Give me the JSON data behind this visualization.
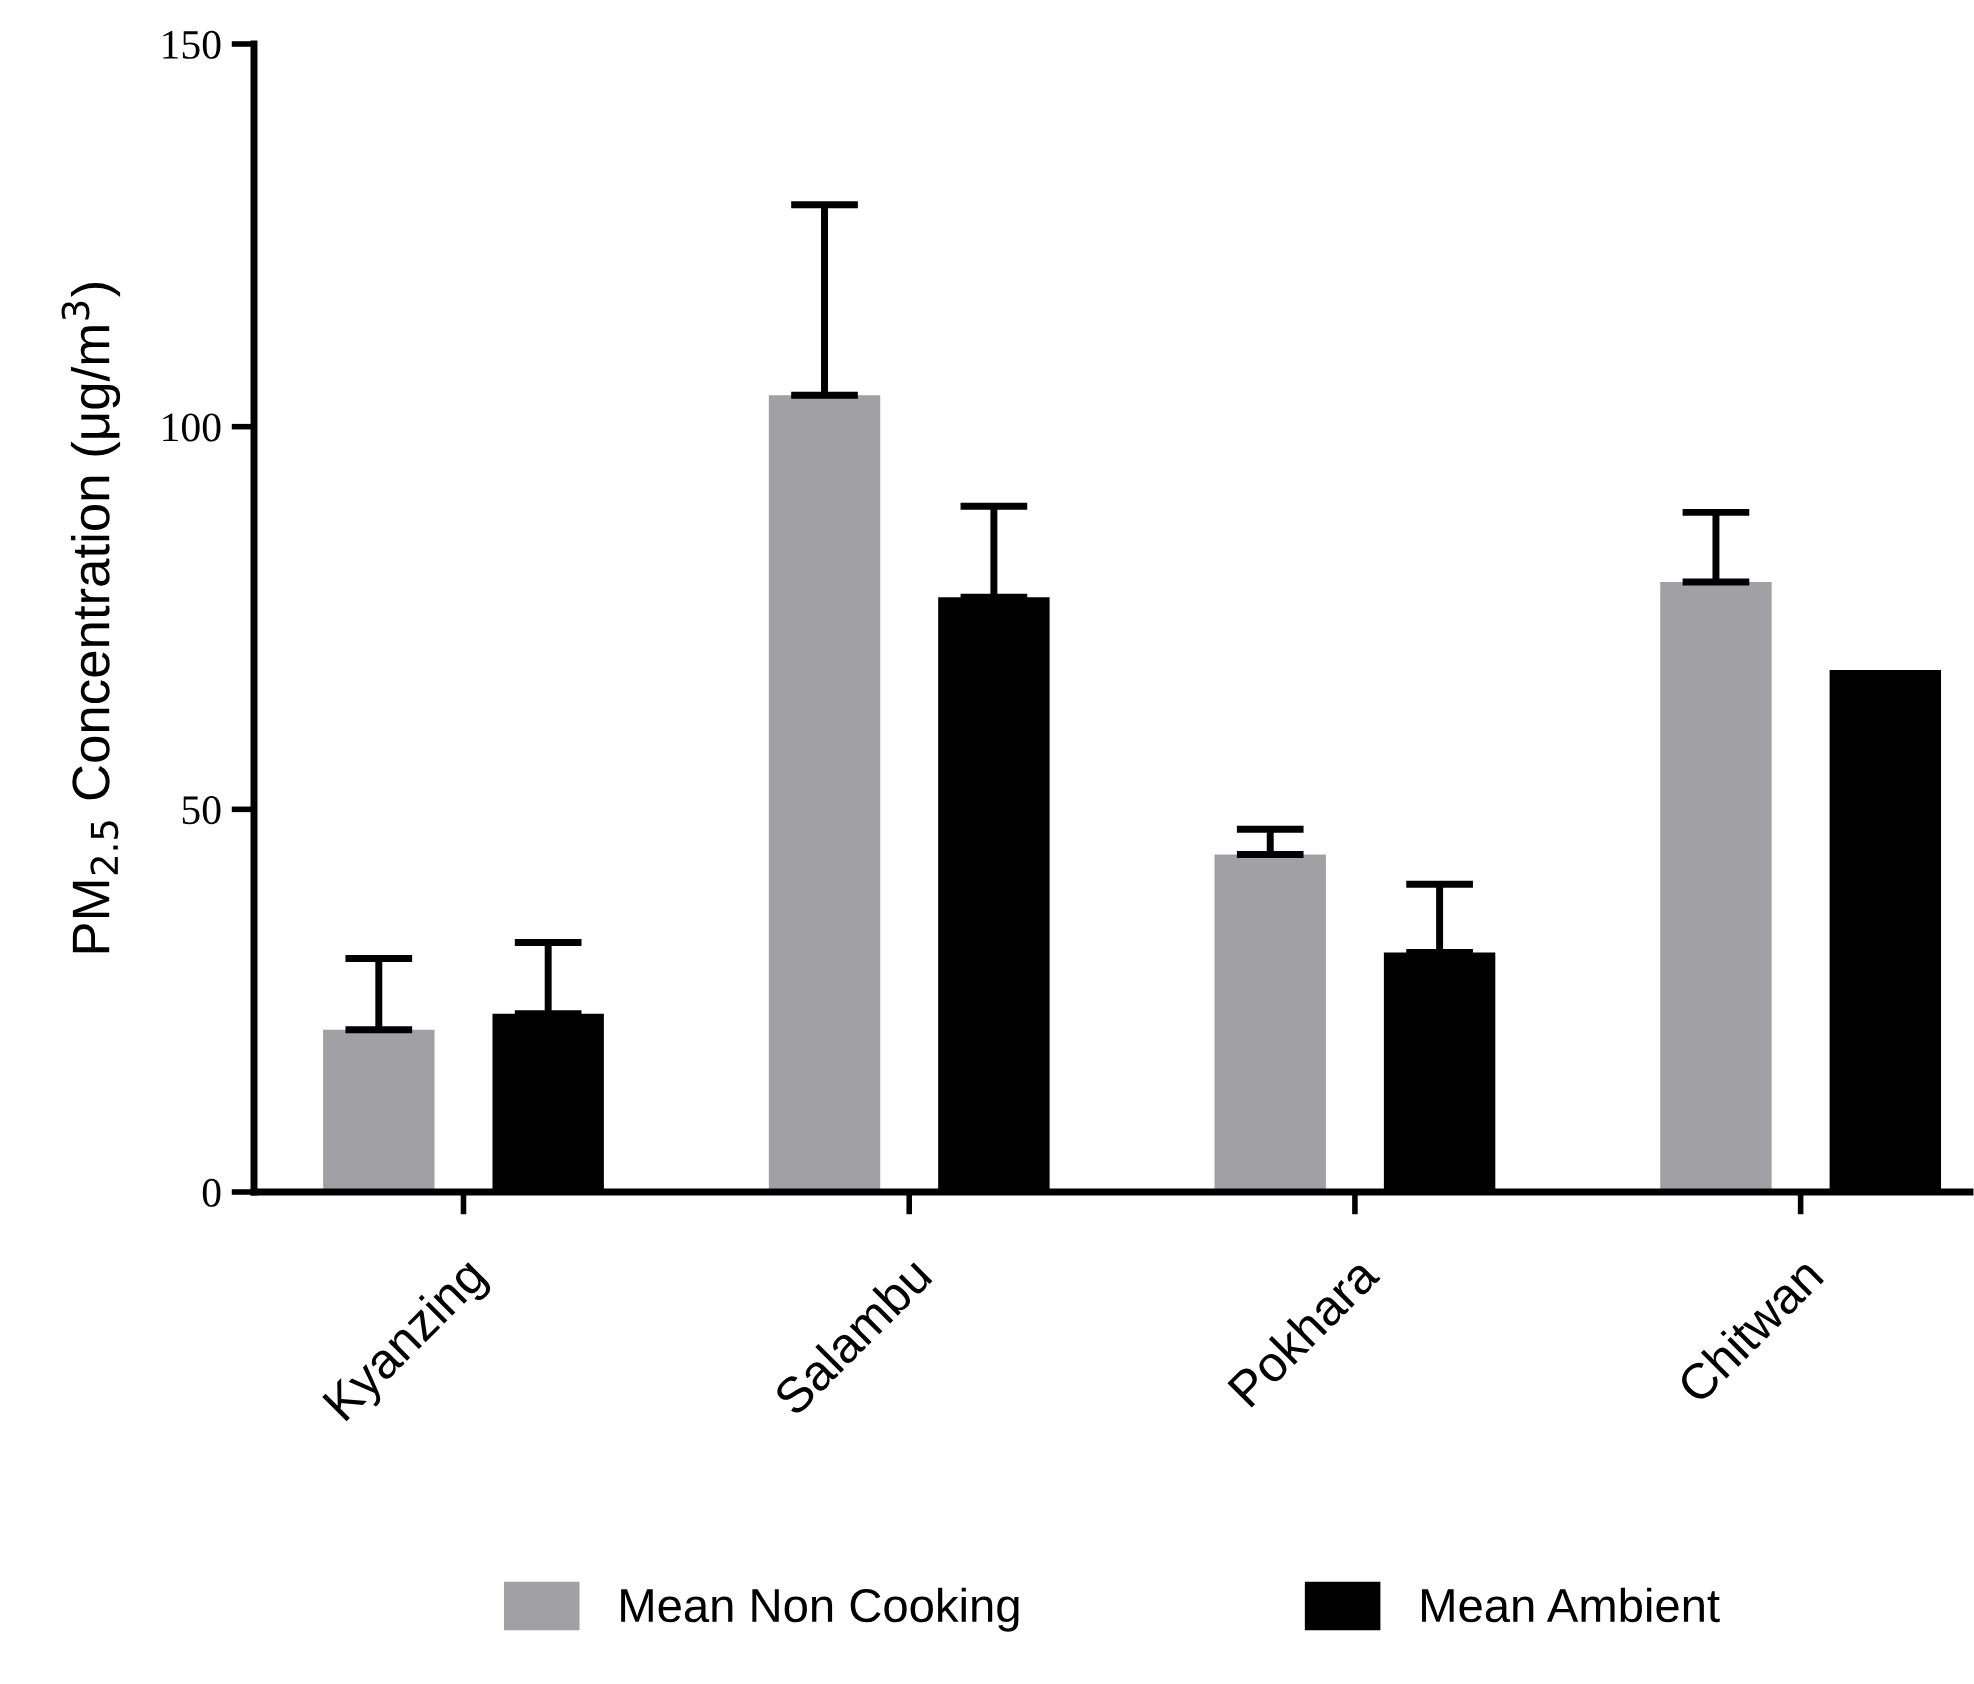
{
  "chart_data": {
    "type": "bar",
    "ylabel": "PM$_{2.5}$ Concentration (μg/m$^{3}$)",
    "categories": [
      "Kyanzing",
      "Salambu",
      "Pokhara",
      "Chitwan"
    ],
    "series": [
      {
        "name": "Mean Non Cooking",
        "color": "#a1a0a5",
        "values": [
          21.2,
          104.1,
          44.1,
          79.7
        ],
        "errors": [
          [
            21.2,
            30.5
          ],
          [
            104.1,
            129
          ],
          [
            44.1,
            47.4
          ],
          [
            79.7,
            88.8
          ]
        ]
      },
      {
        "name": "Mean Ambient",
        "color": "#000000",
        "values": [
          23.3,
          77.7,
          31.3,
          68.2
        ],
        "errors": [
          [
            23.3,
            32.6
          ],
          [
            77.7,
            89.6
          ],
          [
            31.3,
            40.2
          ],
          null
        ]
      }
    ],
    "ylim": [
      0,
      150
    ],
    "yticks": [
      0,
      50,
      100,
      150
    ],
    "grid": false,
    "legend": "bottom"
  }
}
